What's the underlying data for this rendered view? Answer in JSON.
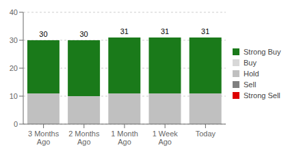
{
  "chart_data": {
    "type": "bar",
    "stacked": true,
    "categories": [
      "3 Months\nAgo",
      "2 Months\nAgo",
      "1 Month\nAgo",
      "1 Week\nAgo",
      "Today"
    ],
    "series": [
      {
        "name": "Strong Sell",
        "color": "#dd0000",
        "values": [
          0,
          0,
          0,
          0,
          0
        ]
      },
      {
        "name": "Sell",
        "color": "#808080",
        "values": [
          0,
          0,
          0,
          0,
          0
        ]
      },
      {
        "name": "Hold",
        "color": "#c0c0c0",
        "values": [
          11,
          10,
          11,
          11,
          11
        ]
      },
      {
        "name": "Buy",
        "color": "#d8d8d8",
        "values": [
          0,
          0,
          0,
          0,
          0
        ]
      },
      {
        "name": "Strong Buy",
        "color": "#1a7a1a",
        "values": [
          19,
          20,
          20,
          20,
          20
        ]
      }
    ],
    "totals": [
      30,
      30,
      31,
      31,
      31
    ],
    "ylim": [
      0,
      40
    ],
    "yticks": [
      0,
      10,
      20,
      30,
      40
    ],
    "grid": true
  }
}
